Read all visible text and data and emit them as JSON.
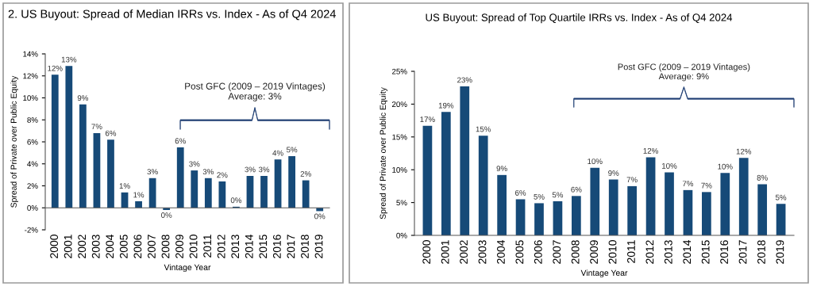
{
  "chart_data": [
    {
      "type": "bar",
      "title": "2. US Buyout: Spread of Median IRRs vs. Index - As of Q4 2024",
      "xlabel": "Vintage Year",
      "ylabel": "Spread of Private over Public Equity",
      "categories": [
        "2000",
        "2001",
        "2002",
        "2003",
        "2004",
        "2005",
        "2006",
        "2007",
        "2008",
        "2009",
        "2010",
        "2011",
        "2012",
        "2013",
        "2014",
        "2015",
        "2016",
        "2017",
        "2018",
        "2019"
      ],
      "values": [
        12.1,
        12.9,
        9.4,
        6.8,
        6.2,
        1.4,
        0.6,
        2.7,
        -0.2,
        5.5,
        3.4,
        2.7,
        2.4,
        0.1,
        2.9,
        2.9,
        4.4,
        4.7,
        2.5,
        -0.3
      ],
      "value_labels": [
        "12%",
        "13%",
        "9%",
        "7%",
        "6%",
        "1%",
        "1%",
        "3%",
        "0%",
        "6%",
        "3%",
        "3%",
        "2%",
        "0%",
        "3%",
        "3%",
        "4%",
        "5%",
        "2%",
        "0%"
      ],
      "color": "#164a78",
      "ylim": [
        -2,
        14
      ],
      "yticks": [
        {
          "value": -2,
          "label": "-2%"
        },
        {
          "value": 0,
          "label": "0%"
        },
        {
          "value": 2,
          "label": "2%"
        },
        {
          "value": 4,
          "label": "4%"
        },
        {
          "value": 6,
          "label": "6%"
        },
        {
          "value": 8,
          "label": "8%"
        },
        {
          "value": 10,
          "label": "10%"
        },
        {
          "value": 12,
          "label": "12%"
        },
        {
          "value": 14,
          "label": "14%"
        }
      ],
      "annotations": [
        "Post GFC (2009 – 2019 Vintages)\nAverage: 3%"
      ]
    },
    {
      "type": "bar",
      "title": "US Buyout: Spread of Top Quartile IRRs vs. Index - As of Q4 2024",
      "xlabel": "Vintage Year",
      "ylabel": "Spread of Private over Public Equity",
      "categories": [
        "2000",
        "2001",
        "2002",
        "2003",
        "2004",
        "2005",
        "2006",
        "2007",
        "2008",
        "2009",
        "2010",
        "2011",
        "2012",
        "2013",
        "2014",
        "2015",
        "2016",
        "2017",
        "2018",
        "2019"
      ],
      "values": [
        16.7,
        18.8,
        22.7,
        15.2,
        9.2,
        5.5,
        4.9,
        5.2,
        6.0,
        10.3,
        8.5,
        7.5,
        11.9,
        9.6,
        6.9,
        6.6,
        9.5,
        11.8,
        7.8,
        4.8
      ],
      "value_labels": [
        "17%",
        "19%",
        "23%",
        "15%",
        "9%",
        "6%",
        "5%",
        "5%",
        "6%",
        "10%",
        "9%",
        "7%",
        "12%",
        "10%",
        "7%",
        "7%",
        "10%",
        "12%",
        "8%",
        "5%"
      ],
      "color": "#164a78",
      "ylim": [
        0,
        25
      ],
      "yticks": [
        {
          "value": 0,
          "label": "0%"
        },
        {
          "value": 5,
          "label": "5%"
        },
        {
          "value": 10,
          "label": "10%"
        },
        {
          "value": 15,
          "label": "15%"
        },
        {
          "value": 20,
          "label": "20%"
        },
        {
          "value": 25,
          "label": "25%"
        }
      ],
      "annotations": [
        "Post GFC (2009 – 2019 Vintages)\nAverage: 9%"
      ]
    }
  ]
}
